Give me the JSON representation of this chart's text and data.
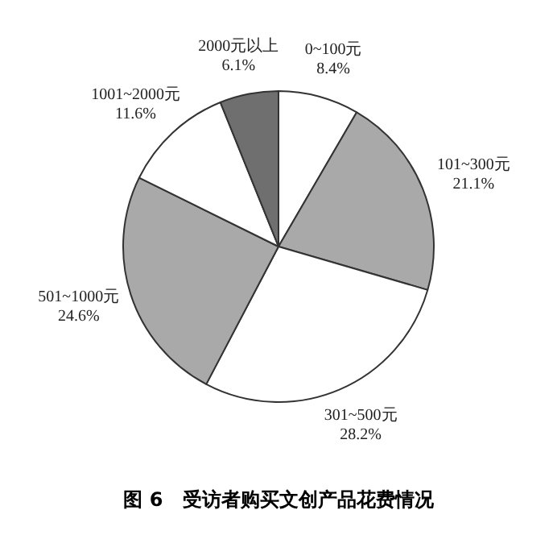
{
  "chart_data": {
    "type": "pie",
    "title": "图 6　受访者购买文创产品花费情况",
    "categories": [
      "0~100元",
      "101~300元",
      "301~500元",
      "501~1000元",
      "1001~2000元",
      "2000元以上"
    ],
    "values": [
      8.4,
      21.1,
      28.2,
      24.6,
      11.6,
      6.1
    ],
    "colors": [
      "#ffffff",
      "#a9a9a9",
      "#ffffff",
      "#a9a9a9",
      "#ffffff",
      "#6f6f6f"
    ],
    "value_labels": [
      "8.4%",
      "21.1%",
      "28.2%",
      "24.6%",
      "11.6%",
      "6.1%"
    ],
    "legend": false
  }
}
